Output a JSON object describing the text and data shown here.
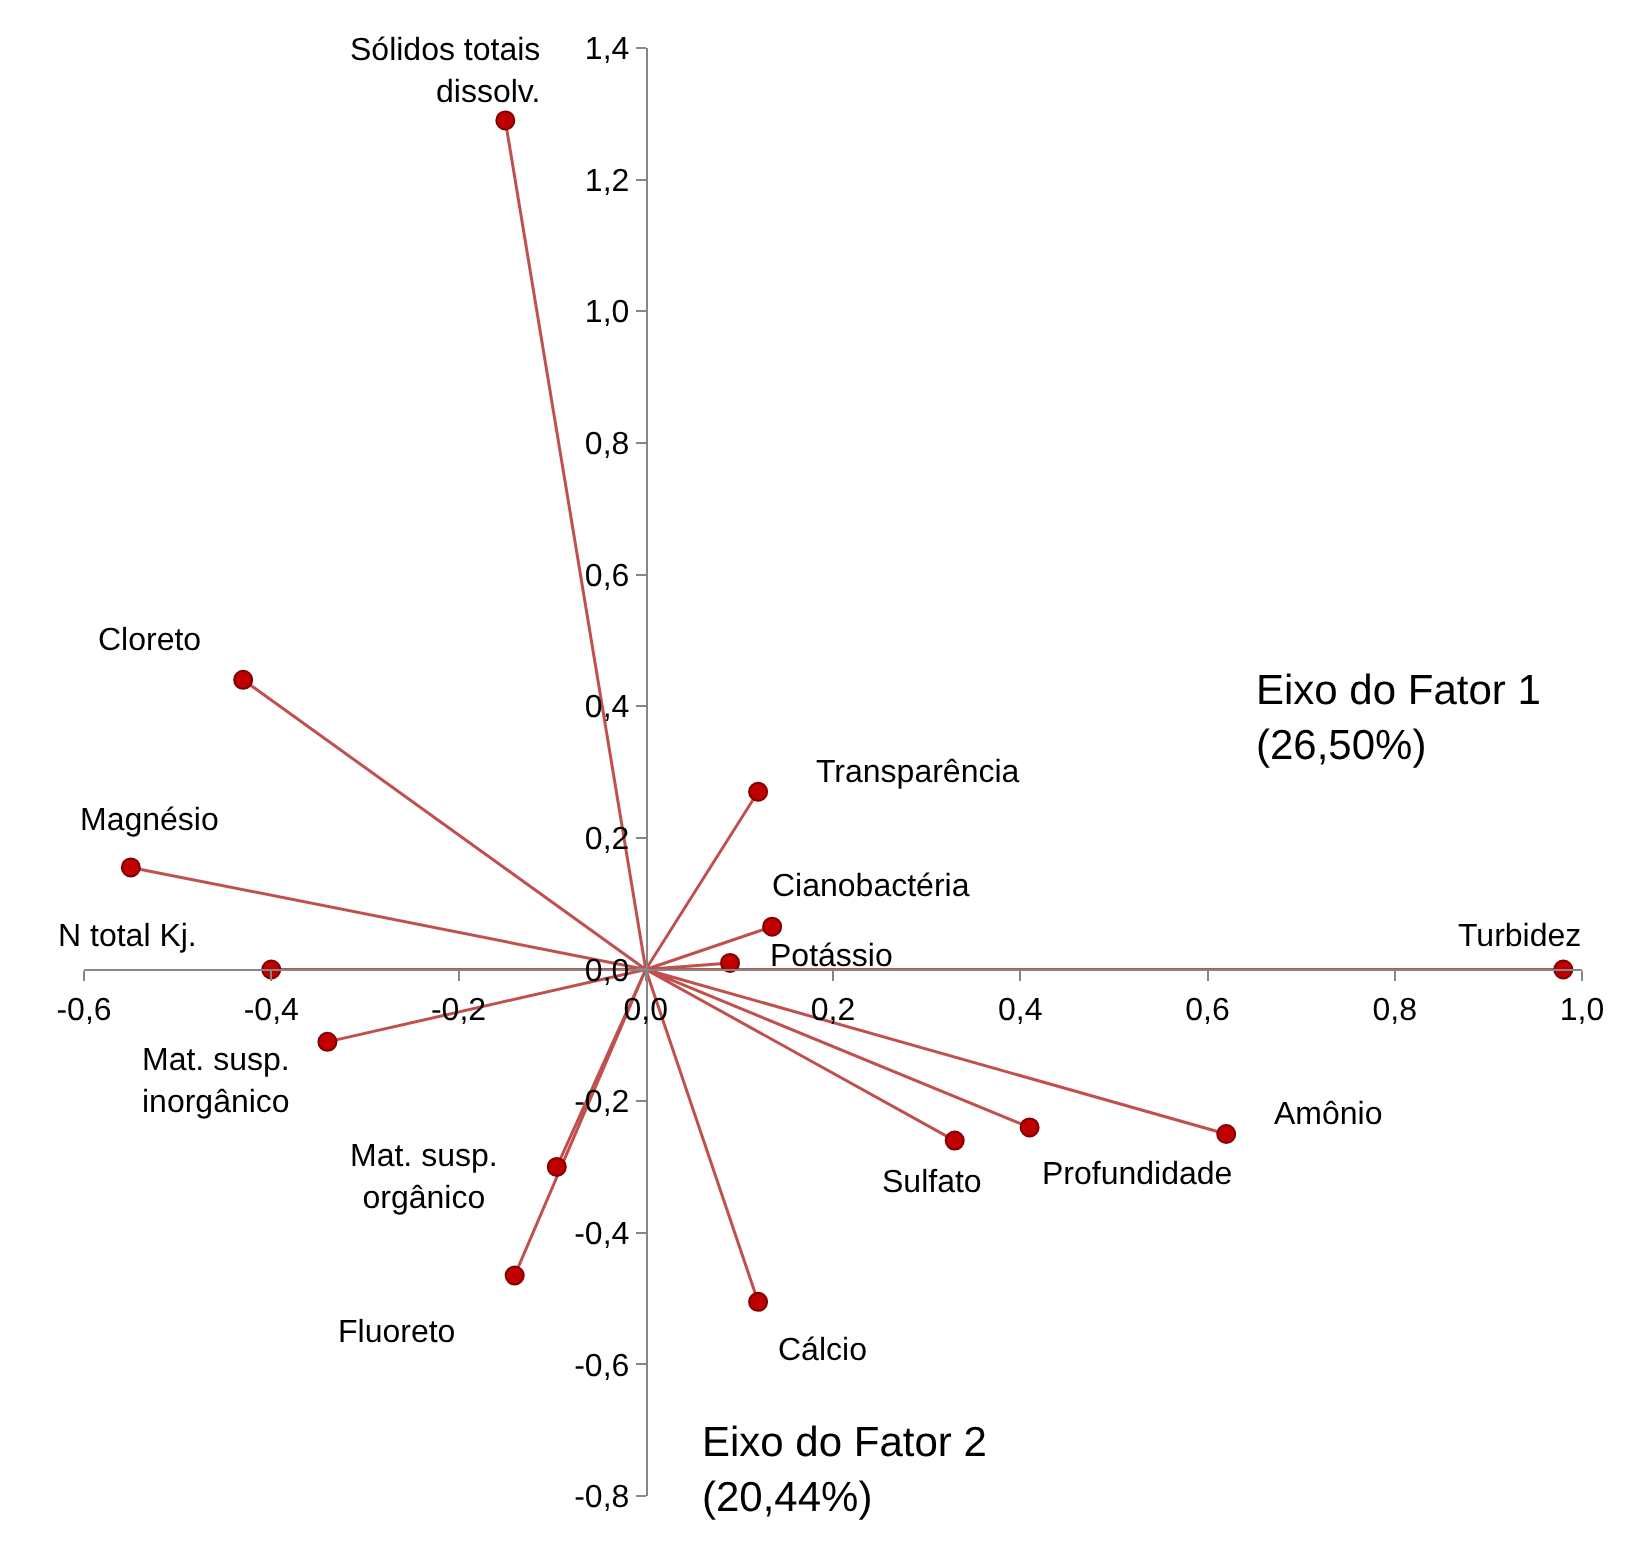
{
  "chart_data": {
    "type": "scatter",
    "xlabel": "Eixo do Fator 1\n(26,50%)",
    "ylabel": "Eixo do Fator 2\n(20,44%)",
    "x": [
      -0.15,
      -0.43,
      -0.55,
      -0.4,
      -0.34,
      -0.095,
      -0.14,
      0.12,
      0.33,
      0.41,
      0.62,
      0.98,
      0.09,
      0.135,
      0.12
    ],
    "series": [
      {
        "type": "line",
        "marker": "none",
        "color": "#c0504d",
        "x": [
          0,
          -0.15,
          0,
          -0.43,
          0,
          -0.55,
          0,
          -0.4,
          0,
          -0.34,
          0,
          -0.095,
          0,
          -0.14,
          0,
          0.12,
          0,
          0.33,
          0,
          0.41,
          0,
          0.62,
          0,
          0.98,
          0,
          0.09,
          0,
          0.135,
          0,
          0.12
        ],
        "values": [
          0,
          1.29,
          0,
          0.44,
          0,
          0.155,
          0,
          0.0,
          0,
          -0.11,
          0,
          -0.3,
          0,
          -0.465,
          0,
          -0.505,
          0,
          -0.26,
          0,
          -0.24,
          0,
          -0.25,
          0,
          0.0,
          0,
          0.01,
          0,
          0.065,
          0,
          0.27
        ]
      },
      {
        "color": "#c00000",
        "values": [
          1.29,
          0.44,
          0.155,
          0.0,
          -0.11,
          -0.3,
          -0.465,
          -0.505,
          -0.26,
          -0.24,
          -0.25,
          0.0,
          0.01,
          0.065,
          0.27
        ]
      }
    ],
    "marker": "circle",
    "annotations": [
      {
        "text": "Sólidos totais\ndissolv.",
        "x": -0.15,
        "y": 1.29
      },
      {
        "text": "Cloreto",
        "x": -0.43,
        "y": 0.44
      },
      {
        "text": "Magnésio",
        "x": -0.55,
        "y": 0.155
      },
      {
        "text": "N total Kj.",
        "x": -0.4,
        "y": 0.0
      },
      {
        "text": "Mat. susp.\ninorgânico",
        "x": -0.34,
        "y": -0.11
      },
      {
        "text": "Mat. susp.\norgânico",
        "x": -0.095,
        "y": -0.3
      },
      {
        "text": "Fluoreto",
        "x": -0.14,
        "y": -0.465
      },
      {
        "text": "Cálcio",
        "x": 0.12,
        "y": -0.505
      },
      {
        "text": "Sulfato",
        "x": 0.33,
        "y": -0.26
      },
      {
        "text": "Profundidade",
        "x": 0.41,
        "y": -0.24
      },
      {
        "text": "Amônio",
        "x": 0.62,
        "y": -0.25
      },
      {
        "text": "Turbidez",
        "x": 0.98,
        "y": 0.0
      },
      {
        "text": "Potássio",
        "x": 0.09,
        "y": 0.01
      },
      {
        "text": "Cianobactéria",
        "x": 0.135,
        "y": 0.065
      },
      {
        "text": "Transparência",
        "x": 0.12,
        "y": 0.27
      }
    ],
    "xlim": [
      -0.6,
      1.0
    ],
    "ylim": [
      -0.8,
      1.4
    ],
    "xticks": [
      {
        "value": -0.6,
        "label": "-0,6"
      },
      {
        "value": -0.4,
        "label": "-0,4"
      },
      {
        "value": -0.2,
        "label": "-0,2"
      },
      {
        "value": 0.0,
        "label": "0,0"
      },
      {
        "value": 0.2,
        "label": "0,2"
      },
      {
        "value": 0.4,
        "label": "0,4"
      },
      {
        "value": 0.6,
        "label": "0,6"
      },
      {
        "value": 0.8,
        "label": "0,8"
      },
      {
        "value": 1.0,
        "label": "1,0"
      }
    ],
    "yticks": [
      {
        "value": -0.8,
        "label": "-0,8"
      },
      {
        "value": -0.6,
        "label": "-0,6"
      },
      {
        "value": -0.4,
        "label": "-0,4"
      },
      {
        "value": -0.2,
        "label": "-0,2"
      },
      {
        "value": 0.0,
        "label": "0,0"
      },
      {
        "value": 0.2,
        "label": "0,2"
      },
      {
        "value": 0.4,
        "label": "0,4"
      },
      {
        "value": 0.6,
        "label": "0,6"
      },
      {
        "value": 0.8,
        "label": "0,8"
      },
      {
        "value": 1.0,
        "label": "1,0"
      },
      {
        "value": 1.2,
        "label": "1,2"
      },
      {
        "value": 1.4,
        "label": "1,4"
      }
    ],
    "tick_labels": true
  }
}
